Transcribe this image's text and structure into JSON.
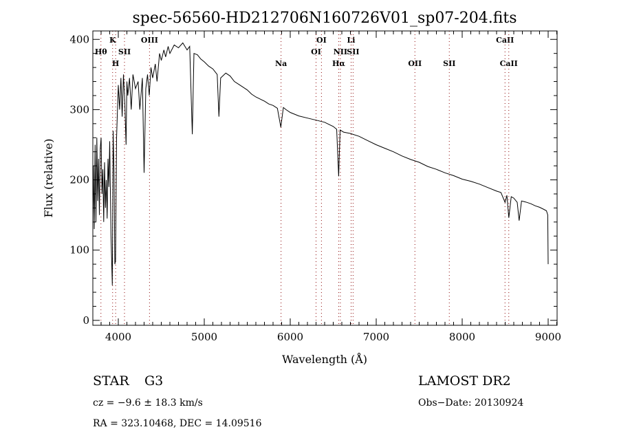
{
  "chart_data": {
    "type": "line",
    "title": "spec-56560-HD212706N160726V01_sp07-204.fits",
    "xlabel": "Wavelength (Å)",
    "ylabel": "Flux (relative)",
    "xlim": [
      3704,
      9104
    ],
    "ylim": [
      -7,
      412
    ],
    "xticks": [
      "4000",
      "5000",
      "6000",
      "7000",
      "8000",
      "9000"
    ],
    "xtick_values": [
      4000,
      5000,
      6000,
      7000,
      8000,
      9000
    ],
    "yticks": [
      "0",
      "100",
      "200",
      "300",
      "400"
    ],
    "ytick_values": [
      0,
      100,
      200,
      300,
      400
    ],
    "grid": false,
    "series": [
      {
        "name": "spectrum",
        "x": [
          3700,
          3710,
          3720,
          3730,
          3740,
          3750,
          3760,
          3770,
          3780,
          3790,
          3800,
          3810,
          3820,
          3830,
          3840,
          3850,
          3860,
          3870,
          3880,
          3890,
          3900,
          3915,
          3930,
          3940,
          3950,
          3960,
          3968,
          3980,
          3990,
          4000,
          4015,
          4030,
          4045,
          4060,
          4075,
          4090,
          4100,
          4110,
          4130,
          4150,
          4170,
          4200,
          4230,
          4250,
          4280,
          4300,
          4320,
          4340,
          4360,
          4380,
          4400,
          4430,
          4450,
          4480,
          4500,
          4530,
          4550,
          4580,
          4600,
          4650,
          4700,
          4750,
          4800,
          4830,
          4861,
          4880,
          4920,
          4960,
          5000,
          5050,
          5100,
          5150,
          5170,
          5190,
          5250,
          5300,
          5350,
          5400,
          5450,
          5500,
          5550,
          5600,
          5650,
          5700,
          5750,
          5800,
          5850,
          5890,
          5920,
          5950,
          6000,
          6100,
          6200,
          6300,
          6400,
          6450,
          6500,
          6540,
          6563,
          6580,
          6620,
          6700,
          6800,
          6900,
          7000,
          7100,
          7200,
          7300,
          7400,
          7500,
          7600,
          7700,
          7800,
          7900,
          8000,
          8100,
          8200,
          8300,
          8400,
          8450,
          8498,
          8520,
          8542,
          8570,
          8600,
          8640,
          8662,
          8690,
          8750,
          8800,
          8850,
          8900,
          8950,
          8980,
          8995,
          9000
        ],
        "y": [
          150,
          220,
          130,
          250,
          140,
          260,
          170,
          230,
          150,
          245,
          260,
          180,
          215,
          140,
          225,
          160,
          200,
          145,
          230,
          190,
          255,
          120,
          50,
          270,
          210,
          80,
          85,
          260,
          300,
          335,
          300,
          345,
          290,
          350,
          310,
          250,
          340,
          320,
          345,
          300,
          350,
          330,
          340,
          300,
          345,
          210,
          330,
          350,
          320,
          360,
          345,
          365,
          340,
          380,
          370,
          385,
          375,
          390,
          380,
          392,
          388,
          395,
          385,
          390,
          265,
          380,
          378,
          372,
          368,
          362,
          358,
          350,
          290,
          345,
          352,
          348,
          340,
          336,
          332,
          328,
          322,
          318,
          315,
          312,
          308,
          306,
          302,
          275,
          303,
          300,
          296,
          291,
          288,
          285,
          282,
          279,
          276,
          272,
          205,
          271,
          268,
          266,
          262,
          256,
          250,
          245,
          240,
          234,
          229,
          225,
          219,
          215,
          210,
          206,
          201,
          198,
          194,
          189,
          184,
          182,
          168,
          178,
          146,
          176,
          174,
          168,
          142,
          170,
          168,
          166,
          163,
          161,
          158,
          156,
          150,
          80
        ]
      }
    ],
    "spectral_lines": [
      {
        "label": "Hθ",
        "wavelength": 3798,
        "row": 2
      },
      {
        "label": "K",
        "wavelength": 3934,
        "row": 1
      },
      {
        "label": "H",
        "wavelength": 3969,
        "row": 3
      },
      {
        "label": "SII",
        "wavelength": 4072,
        "row": 2
      },
      {
        "label": "OIII",
        "wavelength": 4363,
        "row": 1
      },
      {
        "label": "Na",
        "wavelength": 5893,
        "row": 3
      },
      {
        "label": "OI",
        "wavelength": 6300,
        "row": 2
      },
      {
        "label": "OI",
        "wavelength": 6363,
        "row": 1
      },
      {
        "label": "Hα",
        "wavelength": 6563,
        "row": 3
      },
      {
        "label": "NII",
        "wavelength": 6583,
        "row": 2
      },
      {
        "label": "Li",
        "wavelength": 6708,
        "row": 1
      },
      {
        "label": "SII",
        "wavelength": 6731,
        "row": 2
      },
      {
        "label": "OII",
        "wavelength": 7450,
        "row": 3
      },
      {
        "label": "SII",
        "wavelength": 7850,
        "row": 3
      },
      {
        "label": "CaII",
        "wavelength": 8498,
        "row": 1
      },
      {
        "label": "CaII",
        "wavelength": 8542,
        "row": 3
      }
    ]
  },
  "info": {
    "object_class": "STAR",
    "subclass": "G3",
    "survey": "LAMOST DR2",
    "cz": "cz = −9.6 ± 18.3 km/s",
    "obs_date": "Obs−Date: 20130924",
    "coords": "RA = 323.10468, DEC =  14.09516"
  },
  "colors": {
    "line": "#000000",
    "marker": "#8b0000"
  }
}
